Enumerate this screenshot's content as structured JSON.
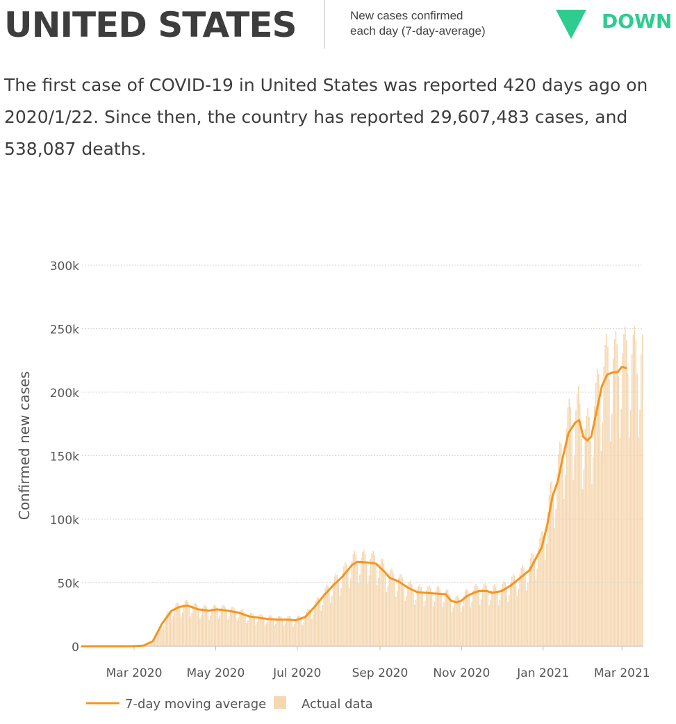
{
  "header": {
    "country": "UNITED STATES",
    "metric_line1": "New cases confirmed",
    "metric_line2": "each day (7-day-average)",
    "trend": "DOWN",
    "trend_color": "#2ecc8f"
  },
  "summary": {
    "text": "The first case of COVID-19 in United States was reported 420 days ago on 2020/1/22. Since then, the country has reported 29,607,483 cases, and 538,087 deaths."
  },
  "chart_data": {
    "type": "line",
    "ylabel": "Confirmed new cases",
    "ylim": [
      0,
      300000
    ],
    "yticks": [
      0,
      50000,
      100000,
      150000,
      200000,
      250000,
      300000
    ],
    "ytick_labels": [
      "0",
      "50k",
      "100k",
      "150k",
      "200k",
      "250k",
      "300k"
    ],
    "x_start": "2020-01-22",
    "x_end": "2021-03-17",
    "xticks": [
      "2020-03-01",
      "2020-05-01",
      "2020-07-01",
      "2020-09-01",
      "2020-11-01",
      "2021-01-01",
      "2021-03-01"
    ],
    "xtick_labels": [
      "Mar 2020",
      "May 2020",
      "Jul 2020",
      "Sep 2020",
      "Nov 2020",
      "Jan 2021",
      "Mar 2021"
    ],
    "grid": true,
    "legend": "bottom-left",
    "line_color": "#f7941d",
    "bar_color": "#f5d7b0",
    "series": [
      {
        "name": "7-day moving average",
        "points": [
          [
            "2020-01-22",
            0
          ],
          [
            "2020-02-20",
            0
          ],
          [
            "2020-03-01",
            50
          ],
          [
            "2020-03-08",
            500
          ],
          [
            "2020-03-15",
            4000
          ],
          [
            "2020-03-22",
            18000
          ],
          [
            "2020-03-29",
            28000
          ],
          [
            "2020-04-04",
            31000
          ],
          [
            "2020-04-10",
            32000
          ],
          [
            "2020-04-18",
            29000
          ],
          [
            "2020-04-26",
            28000
          ],
          [
            "2020-05-02",
            29000
          ],
          [
            "2020-05-10",
            28000
          ],
          [
            "2020-05-18",
            26500
          ],
          [
            "2020-05-26",
            23500
          ],
          [
            "2020-06-02",
            22500
          ],
          [
            "2020-06-09",
            21500
          ],
          [
            "2020-06-16",
            21000
          ],
          [
            "2020-06-23",
            21000
          ],
          [
            "2020-06-30",
            20500
          ],
          [
            "2020-07-07",
            23000
          ],
          [
            "2020-07-14",
            31000
          ],
          [
            "2020-07-21",
            40000
          ],
          [
            "2020-07-28",
            48000
          ],
          [
            "2020-08-04",
            55000
          ],
          [
            "2020-08-11",
            64000
          ],
          [
            "2020-08-15",
            66500
          ],
          [
            "2020-08-22",
            66000
          ],
          [
            "2020-08-29",
            65000
          ],
          [
            "2020-09-05",
            58000
          ],
          [
            "2020-09-08",
            54000
          ],
          [
            "2020-09-15",
            51000
          ],
          [
            "2020-09-22",
            46000
          ],
          [
            "2020-09-29",
            42500
          ],
          [
            "2020-10-06",
            42000
          ],
          [
            "2020-10-13",
            41500
          ],
          [
            "2020-10-20",
            41000
          ],
          [
            "2020-10-24",
            36000
          ],
          [
            "2020-10-28",
            34500
          ],
          [
            "2020-11-01",
            36000
          ],
          [
            "2020-11-05",
            39500
          ],
          [
            "2020-11-10",
            42000
          ],
          [
            "2020-11-14",
            43500
          ],
          [
            "2020-11-20",
            43500
          ],
          [
            "2020-11-24",
            42000
          ],
          [
            "2020-12-01",
            43500
          ],
          [
            "2020-12-08",
            48000
          ],
          [
            "2020-12-15",
            54000
          ],
          [
            "2020-12-22",
            60000
          ],
          [
            "2020-12-26",
            68000
          ],
          [
            "2020-12-31",
            78000
          ],
          [
            "2021-01-04",
            95000
          ],
          [
            "2021-01-08",
            118000
          ],
          [
            "2021-01-12",
            130000
          ],
          [
            "2021-01-16",
            150000
          ],
          [
            "2021-01-20",
            168000
          ],
          [
            "2021-01-25",
            176000
          ],
          [
            "2021-01-28",
            178000
          ],
          [
            "2021-01-31",
            165000
          ],
          [
            "2021-02-03",
            162000
          ],
          [
            "2021-02-06",
            165000
          ],
          [
            "2021-02-10",
            185000
          ],
          [
            "2021-02-14",
            205000
          ],
          [
            "2021-02-18",
            214000
          ],
          [
            "2021-02-22",
            215500
          ],
          [
            "2021-02-26",
            216000
          ],
          [
            "2021-03-01",
            220000
          ],
          [
            "2021-03-04",
            219000
          ]
        ]
      },
      {
        "name": "Actual data",
        "values": []
      }
    ],
    "legend_entries": [
      "7-day moving average",
      "Actual data"
    ]
  }
}
